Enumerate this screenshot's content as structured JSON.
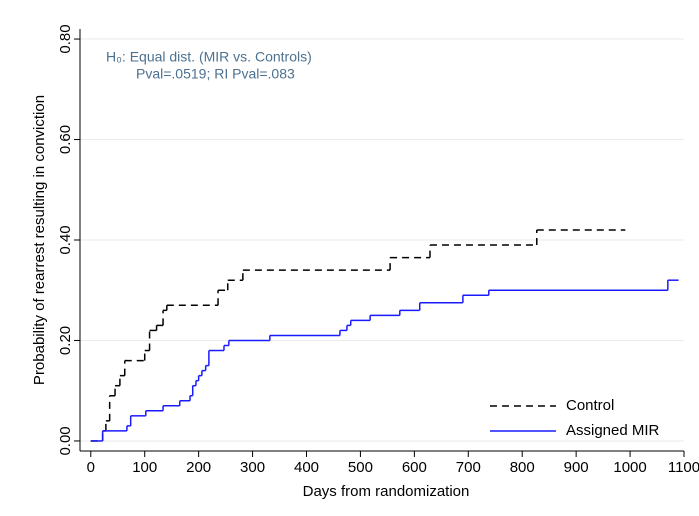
{
  "chart_data": {
    "type": "line",
    "step": "post",
    "xlabel": "Days from randomization",
    "ylabel": "Probability of rearrest resulting in conviction",
    "annotations": [
      "H₀: Equal dist. (MIR vs. Controls)",
      "Pval=.0519; RI Pval=.083"
    ],
    "xlim": [
      -20,
      1100
    ],
    "xticks": [
      0,
      100,
      200,
      300,
      400,
      500,
      600,
      700,
      800,
      900,
      1000,
      1100
    ],
    "ylim": [
      -0.02,
      0.82
    ],
    "yticks": [
      {
        "value": 0,
        "label": "0.00"
      },
      {
        "value": 0.2,
        "label": "0.20"
      },
      {
        "value": 0.4,
        "label": "0.40"
      },
      {
        "value": 0.6,
        "label": "0.60"
      },
      {
        "value": 0.8,
        "label": "0.80"
      }
    ],
    "grid": true,
    "legend": "lower right",
    "series": [
      {
        "name": "Control",
        "color": "#000000",
        "linestyle": "dashed",
        "x": [
          0,
          22,
          28,
          35,
          45,
          54,
          63,
          100,
          109,
          122,
          134,
          141,
          236,
          254,
          282,
          555,
          629,
          827,
          991
        ],
        "values": [
          0,
          0.02,
          0.04,
          0.09,
          0.11,
          0.13,
          0.16,
          0.18,
          0.22,
          0.23,
          0.26,
          0.27,
          0.3,
          0.32,
          0.34,
          0.365,
          0.39,
          0.42,
          0.42
        ]
      },
      {
        "name": "Assigned MIR",
        "color": "#1a1aff",
        "linestyle": "solid",
        "x": [
          0,
          22,
          67,
          74,
          102,
          134,
          165,
          184,
          189,
          195,
          200,
          206,
          213,
          219,
          247,
          256,
          332,
          462,
          475,
          482,
          518,
          573,
          610,
          690,
          738,
          1070,
          1090
        ],
        "values": [
          0,
          0.02,
          0.03,
          0.05,
          0.06,
          0.07,
          0.08,
          0.09,
          0.11,
          0.12,
          0.13,
          0.14,
          0.15,
          0.18,
          0.19,
          0.2,
          0.21,
          0.22,
          0.23,
          0.24,
          0.25,
          0.26,
          0.275,
          0.29,
          0.3,
          0.32,
          0.32
        ]
      }
    ]
  }
}
